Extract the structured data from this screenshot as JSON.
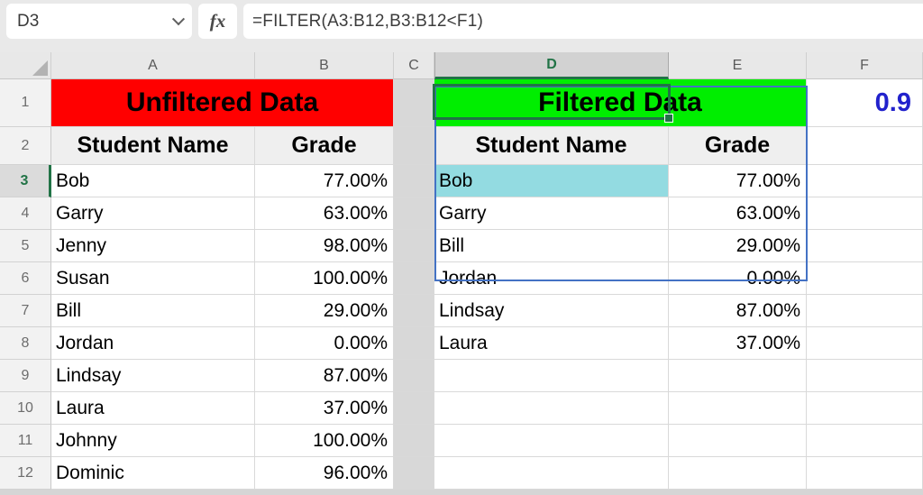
{
  "formula_bar": {
    "name_box_value": "D3",
    "fx_label": "fx",
    "formula": "=FILTER(A3:B12,B3:B12<F1)"
  },
  "grid": {
    "column_letters": [
      "A",
      "B",
      "C",
      "D",
      "E",
      "F"
    ],
    "row_numbers": [
      "1",
      "2",
      "3",
      "4",
      "5",
      "6",
      "7",
      "8",
      "9",
      "10",
      "11",
      "12"
    ],
    "selected_cell": "D3",
    "selected_column": "D",
    "selected_row": "3"
  },
  "left_table": {
    "title": "Unfiltered Data",
    "col1_header": "Student Name",
    "col2_header": "Grade",
    "rows": [
      [
        "Bob",
        "77.00%"
      ],
      [
        "Garry",
        "63.00%"
      ],
      [
        "Jenny",
        "98.00%"
      ],
      [
        "Susan",
        "100.00%"
      ],
      [
        "Bill",
        "29.00%"
      ],
      [
        "Jordan",
        "0.00%"
      ],
      [
        "Lindsay",
        "87.00%"
      ],
      [
        "Laura",
        "37.00%"
      ],
      [
        "Johnny",
        "100.00%"
      ],
      [
        "Dominic",
        "96.00%"
      ]
    ]
  },
  "right_table": {
    "title": "Filtered Data",
    "col1_header": "Student Name",
    "col2_header": "Grade",
    "rows": [
      [
        "Bob",
        "77.00%"
      ],
      [
        "Garry",
        "63.00%"
      ],
      [
        "Bill",
        "29.00%"
      ],
      [
        "Jordan",
        "0.00%"
      ],
      [
        "Lindsay",
        "87.00%"
      ],
      [
        "Laura",
        "37.00%"
      ]
    ]
  },
  "threshold": {
    "value": "0.9"
  },
  "colors": {
    "unfiltered_banner": "#ff0000",
    "filtered_banner": "#00ee00",
    "threshold_text": "#2222cc",
    "selection_fill": "#93dbe1",
    "excel_green": "#217346",
    "spill_border": "#4472c4",
    "gray_column": "#d8d8d8"
  }
}
